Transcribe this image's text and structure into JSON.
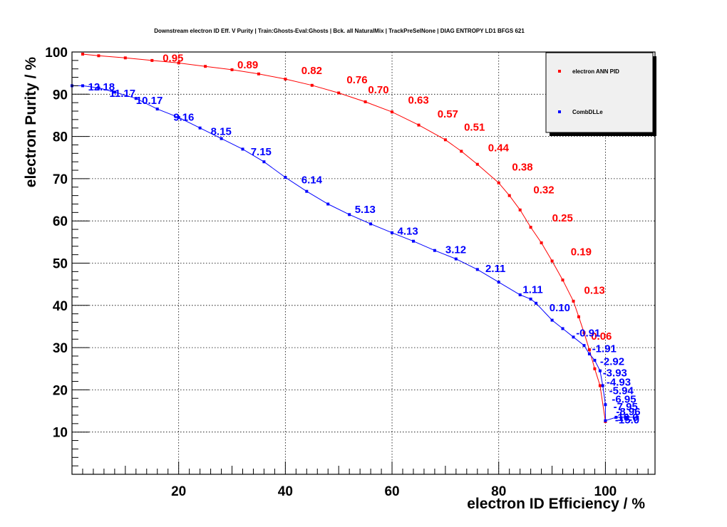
{
  "chart_data": {
    "type": "line",
    "title": "Downstream electron ID Eff. V Purity | Train:Ghosts-Eval:Ghosts | Bck. all NaturalMix | TrackPreSelNone | DIAG ENTROPY LD1 BFGS 621",
    "xlabel": "electron ID Efficiency / %",
    "ylabel": "electron Purity / %",
    "xlim": [
      0,
      109.3
    ],
    "ylim": [
      0,
      100
    ],
    "xticks": [
      20,
      40,
      60,
      80,
      100
    ],
    "yticks": [
      10,
      20,
      30,
      40,
      50,
      60,
      70,
      80,
      90,
      100
    ],
    "grid": true,
    "legend_position": "top-right",
    "series": [
      {
        "name": "electron ANN PID",
        "color": "#ff0000",
        "x": [
          2,
          5,
          10,
          15,
          20,
          25,
          30,
          35,
          40,
          45,
          50,
          55,
          60,
          65,
          70,
          73,
          76,
          80,
          82,
          84,
          86,
          88,
          90,
          92,
          94,
          95,
          96,
          97,
          98,
          99,
          100
        ],
        "y": [
          99.5,
          99.1,
          98.6,
          98.0,
          97.4,
          96.6,
          95.8,
          94.8,
          93.6,
          92.1,
          90.3,
          88.2,
          85.8,
          82.7,
          79.2,
          76.5,
          73.4,
          69.0,
          66.0,
          62.6,
          58.5,
          54.8,
          50.5,
          46.0,
          41.0,
          37.3,
          33.5,
          29.5,
          25.0,
          21.0,
          12.5
        ],
        "cut_labels": [
          {
            "text": "0.95",
            "x": 17,
            "y": 98.6
          },
          {
            "text": "0.89",
            "x": 31,
            "y": 97.0
          },
          {
            "text": "0.82",
            "x": 43,
            "y": 95.6
          },
          {
            "text": "0.76",
            "x": 51.5,
            "y": 93.4
          },
          {
            "text": "0.70",
            "x": 55.5,
            "y": 91.1
          },
          {
            "text": "0.63",
            "x": 63,
            "y": 88.6
          },
          {
            "text": "0.57",
            "x": 68.5,
            "y": 85.3
          },
          {
            "text": "0.51",
            "x": 73.5,
            "y": 82.2
          },
          {
            "text": "0.44",
            "x": 78,
            "y": 77.3
          },
          {
            "text": "0.38",
            "x": 82.5,
            "y": 72.8
          },
          {
            "text": "0.32",
            "x": 86.5,
            "y": 67.4
          },
          {
            "text": "0.25",
            "x": 90,
            "y": 60.7
          },
          {
            "text": "0.19",
            "x": 93.5,
            "y": 52.7
          },
          {
            "text": "0.13",
            "x": 96,
            "y": 43.6
          },
          {
            "text": "0.06",
            "x": 97.3,
            "y": 32.7
          }
        ]
      },
      {
        "name": "CombDLLe",
        "color": "#0000ff",
        "x": [
          0,
          2,
          5,
          8,
          12,
          16,
          20,
          24,
          28,
          32,
          36,
          40,
          44,
          48,
          52,
          56,
          60,
          64,
          68,
          72,
          76,
          80,
          84,
          86,
          87,
          90,
          92,
          94,
          96,
          97,
          98,
          99,
          99.5,
          100,
          100,
          102,
          104,
          106
        ],
        "y": [
          92.0,
          92.0,
          91.5,
          90.5,
          89.0,
          86.5,
          84.5,
          82.0,
          79.5,
          77.0,
          74.0,
          70.3,
          67.0,
          64.0,
          61.5,
          59.3,
          57.2,
          55.2,
          53.0,
          51.0,
          48.5,
          45.5,
          42.5,
          41.5,
          40.5,
          36.5,
          34.5,
          32.5,
          30.5,
          28.5,
          27.0,
          24.5,
          21.0,
          16.5,
          12.7,
          13.5,
          13.5,
          13.5
        ],
        "cut_labels": [
          {
            "text": "12.18",
            "x": 3,
            "y": 91.7
          },
          {
            "text": "11.17",
            "x": 7,
            "y": 90.2
          },
          {
            "text": "10.17",
            "x": 12,
            "y": 88.5
          },
          {
            "text": "9.16",
            "x": 19,
            "y": 84.6
          },
          {
            "text": "8.15",
            "x": 26,
            "y": 81.2
          },
          {
            "text": "7.15",
            "x": 33.5,
            "y": 76.4
          },
          {
            "text": "6.14",
            "x": 43,
            "y": 69.7
          },
          {
            "text": "5.13",
            "x": 53,
            "y": 62.7
          },
          {
            "text": "4.13",
            "x": 61,
            "y": 57.6
          },
          {
            "text": "3.12",
            "x": 70,
            "y": 53.2
          },
          {
            "text": "2.11",
            "x": 77.5,
            "y": 48.7
          },
          {
            "text": "1.11",
            "x": 84.5,
            "y": 43.8
          },
          {
            "text": "0.10",
            "x": 89.5,
            "y": 39.5
          },
          {
            "text": "-0.91",
            "x": 94.5,
            "y": 33.5
          },
          {
            "text": "-1.91",
            "x": 97.5,
            "y": 29.8
          },
          {
            "text": "-2.92",
            "x": 99,
            "y": 26.7
          },
          {
            "text": "-3.93",
            "x": 99.5,
            "y": 24.0
          },
          {
            "text": "-4.93",
            "x": 100.2,
            "y": 21.8
          },
          {
            "text": "-5.94",
            "x": 100.7,
            "y": 19.8
          },
          {
            "text": "-6.95",
            "x": 101.2,
            "y": 17.8
          },
          {
            "text": "-7.95",
            "x": 101.5,
            "y": 16.0
          },
          {
            "text": "-8.96",
            "x": 102,
            "y": 14.8
          },
          {
            "text": "-10.0",
            "x": 101.6,
            "y": 13.5
          },
          {
            "text": "-15.0",
            "x": 101.8,
            "y": 12.9
          }
        ]
      }
    ]
  }
}
